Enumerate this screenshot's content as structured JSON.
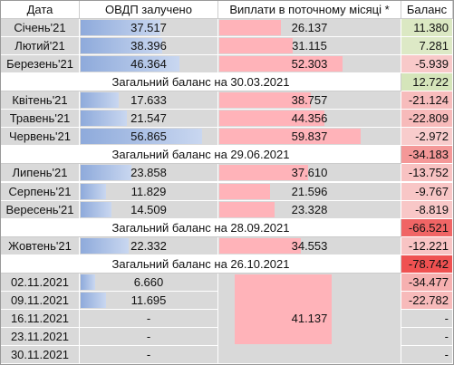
{
  "table": {
    "header": [
      "Дата",
      "ОВДП залучено",
      "Виплати в поточному місяці *",
      "Баланс"
    ],
    "rows": [
      {
        "date": "Січень'21",
        "ovdp": "37.517",
        "payments": "26.137",
        "balance": "11.380"
      },
      {
        "date": "Лютий'21",
        "ovdp": "38.396",
        "payments": "31.115",
        "balance": "7.281"
      },
      {
        "date": "Березень'21",
        "ovdp": "46.364",
        "payments": "52.303",
        "balance": "-5.939"
      },
      {
        "summary": "Загальний баланс на 30.03.2021",
        "balance": "12.722"
      },
      {
        "date": "Квітень'21",
        "ovdp": "17.633",
        "payments": "38.757",
        "balance": "-21.124"
      },
      {
        "date": "Травень'21",
        "ovdp": "21.547",
        "payments": "44.356",
        "balance": "-22.809"
      },
      {
        "date": "Червень'21",
        "ovdp": "56.865",
        "payments": "59.837",
        "balance": "-2.972"
      },
      {
        "summary": "Загальний баланс на 29.06.2021",
        "balance": "-34.183"
      },
      {
        "date": "Липень'21",
        "ovdp": "23.858",
        "payments": "37.610",
        "balance": "-13.752"
      },
      {
        "date": "Серпень'21",
        "ovdp": "11.829",
        "payments": "21.596",
        "balance": "-9.767"
      },
      {
        "date": "Вересень'21",
        "ovdp": "14.509",
        "payments": "23.328",
        "balance": "-8.819"
      },
      {
        "summary": "Загальний баланс на 28.09.2021",
        "balance": "-66.521"
      },
      {
        "date": "Жовтень'21",
        "ovdp": "22.332",
        "payments": "34.553",
        "balance": "-12.221"
      },
      {
        "summary": "Загальний баланс на 26.10.2021",
        "balance": "-78.742"
      },
      {
        "date": "02.11.2021",
        "ovdp": "6.660",
        "balance": "-34.477"
      },
      {
        "date": "09.11.2021",
        "ovdp": "11.695",
        "balance": "-22.782"
      },
      {
        "date": "16.11.2021",
        "ovdp": "-",
        "balance": "-"
      },
      {
        "date": "23.11.2021",
        "ovdp": "-",
        "balance": "-"
      },
      {
        "date": "30.11.2021",
        "ovdp": "-",
        "balance": "-"
      }
    ],
    "november_payments": "41.137"
  }
}
